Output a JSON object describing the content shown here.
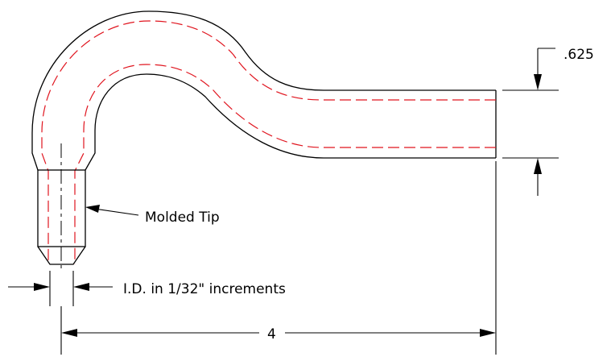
{
  "drawing": {
    "thickness_label": ".625",
    "tip_label": "Molded Tip",
    "id_label": "I.D. in 1/32\" increments",
    "length_label": "4"
  },
  "colors": {
    "outline": "#000000",
    "hidden_line": "#e0141e",
    "background": "#ffffff"
  }
}
